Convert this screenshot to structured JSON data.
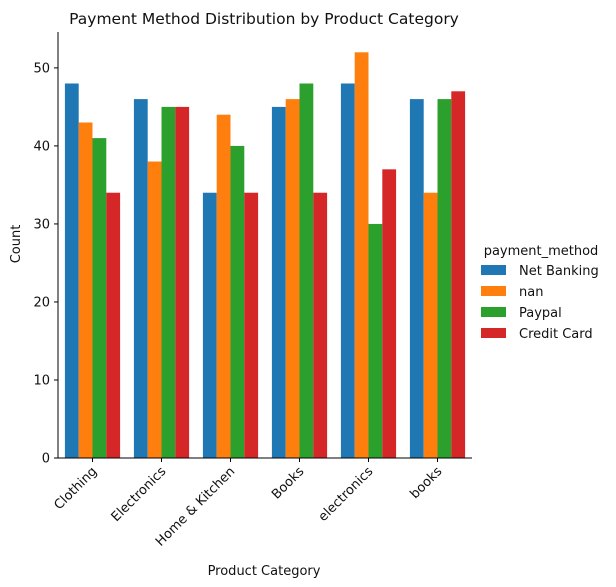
{
  "chart_data": {
    "type": "bar",
    "title": "Payment Method Distribution by Product Category",
    "xlabel": "Product Category",
    "ylabel": "Count",
    "categories": [
      "Clothing",
      "Electronics",
      "Home & Kitchen",
      "Books",
      "electronics",
      "books"
    ],
    "yticks": [
      "0",
      "10",
      "20",
      "30",
      "40",
      "50"
    ],
    "ylim": [
      0,
      54.6
    ],
    "grid": false,
    "legend": {
      "title": "payment_method",
      "placement": "right"
    },
    "series": [
      {
        "name": "Net Banking",
        "color": "#1f77b4",
        "values": [
          48,
          46,
          34,
          45,
          48,
          46
        ]
      },
      {
        "name": "nan",
        "color": "#ff7f0e",
        "values": [
          43,
          38,
          44,
          46,
          52,
          34
        ]
      },
      {
        "name": "Paypal",
        "color": "#2ca02c",
        "values": [
          41,
          45,
          40,
          48,
          30,
          46
        ]
      },
      {
        "name": "Credit Card",
        "color": "#d62728",
        "values": [
          34,
          45,
          34,
          34,
          37,
          47
        ]
      }
    ]
  }
}
